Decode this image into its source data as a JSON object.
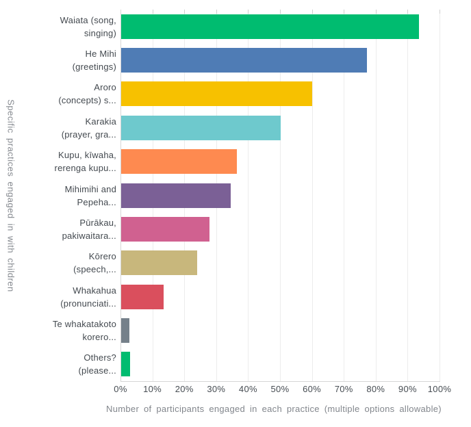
{
  "chart_data": {
    "type": "bar",
    "orientation": "horizontal",
    "categories": [
      "Waiata (song, singing)",
      "He Mihi (greetings)",
      "Aroro (concepts) s...",
      "Karakia (prayer, gra...",
      "Kupu, kīwaha, rerenga kupu...",
      "Mihimihi and Pepeha...",
      "Pūrākau, pakiwaitara...",
      "Kōrero (speech,...",
      "Whakahua (pronunciati...",
      "Te whakatakoto korero...",
      "Others? (please..."
    ],
    "category_lines": [
      [
        "Waiata (song,",
        "singing)"
      ],
      [
        "He Mihi",
        "(greetings)"
      ],
      [
        "Aroro",
        "(concepts) s..."
      ],
      [
        "Karakia",
        "(prayer, gra..."
      ],
      [
        "Kupu, kīwaha,",
        "rerenga kupu..."
      ],
      [
        "Mihimihi and",
        "Pepeha..."
      ],
      [
        "Pūrākau,",
        "pakiwaitara..."
      ],
      [
        "Kōrero",
        "(speech,..."
      ],
      [
        "Whakahua",
        "(pronunciati..."
      ],
      [
        "Te whakatakoto",
        "korero..."
      ],
      [
        "Others?",
        "(please..."
      ]
    ],
    "values": [
      93.4,
      77.0,
      59.8,
      50.0,
      36.3,
      34.4,
      27.7,
      23.9,
      13.2,
      2.6,
      2.7
    ],
    "colors": [
      "#00bc70",
      "#4f7cb5",
      "#f7c100",
      "#6ec9cd",
      "#fe8a50",
      "#7b6096",
      "#d06190",
      "#c8b77c",
      "#da4f5d",
      "#75808a",
      "#00bc70"
    ],
    "x_tick_labels": [
      "0%",
      "10%",
      "20%",
      "30%",
      "40%",
      "50%",
      "60%",
      "70%",
      "80%",
      "90%",
      "100%"
    ],
    "xlim": [
      0,
      100
    ],
    "xlabel": "Number of participants engaged in each practice (multiple options allowable)",
    "ylabel": "Specific practices engaged in with children",
    "grid": "vertical",
    "legend": "none"
  }
}
